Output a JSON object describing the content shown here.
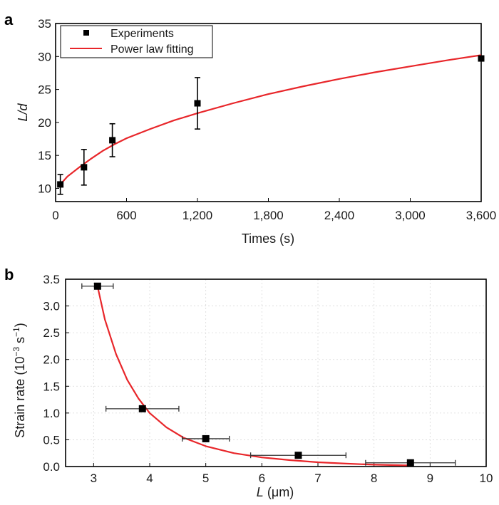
{
  "chart_data": [
    {
      "panel_label": "a",
      "type": "scatter",
      "xlabel": "Times (s)",
      "ylabel": "L/d",
      "xlim": [
        0,
        3600
      ],
      "ylim": [
        8,
        35
      ],
      "x_ticks": [
        0,
        600,
        1200,
        1800,
        2400,
        3000,
        3600
      ],
      "x_tick_labels": [
        "0",
        "600",
        "1,200",
        "1,800",
        "2,400",
        "3,000",
        "3,600"
      ],
      "y_ticks": [
        10,
        15,
        20,
        25,
        30,
        35
      ],
      "y_tick_labels": [
        "10",
        "15",
        "20",
        "25",
        "30",
        "35"
      ],
      "grid": false,
      "legend_position": "top-left",
      "series": [
        {
          "name": "Experiments",
          "kind": "points",
          "marker": "square",
          "color": "#000000",
          "x": [
            40,
            240,
            480,
            1200,
            3600
          ],
          "y": [
            10.6,
            13.2,
            17.3,
            22.9,
            29.7
          ],
          "y_err": [
            1.5,
            2.7,
            2.5,
            3.9,
            0
          ]
        },
        {
          "name": "Power law fitting",
          "kind": "line",
          "color": "#e8262a",
          "x": [
            40,
            100,
            200,
            300,
            400,
            500,
            600,
            800,
            1000,
            1200,
            1500,
            1800,
            2100,
            2400,
            2700,
            3000,
            3300,
            3600
          ],
          "y": [
            10.6,
            11.8,
            13.2,
            14.5,
            15.7,
            16.7,
            17.6,
            19.0,
            20.3,
            21.4,
            22.9,
            24.3,
            25.5,
            26.6,
            27.6,
            28.5,
            29.4,
            30.2
          ]
        }
      ]
    },
    {
      "panel_label": "b",
      "type": "scatter",
      "xlabel_italic": "L",
      "xlabel_unit": "(μm)",
      "ylabel_main": "Strain rate (10",
      "ylabel_exp1": "−3",
      "ylabel_mid": " s",
      "ylabel_exp2": "−1",
      "ylabel_end": ")",
      "xlim": [
        2.5,
        10
      ],
      "ylim": [
        0,
        3.5
      ],
      "x_ticks": [
        3,
        4,
        5,
        6,
        7,
        8,
        9,
        10
      ],
      "x_tick_labels": [
        "3",
        "4",
        "5",
        "6",
        "7",
        "8",
        "9",
        "10"
      ],
      "y_ticks": [
        0,
        0.5,
        1,
        1.5,
        2,
        2.5,
        3,
        3.5
      ],
      "y_tick_labels": [
        "0.0",
        "0.5",
        "1.0",
        "1.5",
        "2.0",
        "2.5",
        "3.0",
        "3.5"
      ],
      "grid": true,
      "series": [
        {
          "kind": "points",
          "marker": "square",
          "color": "#000000",
          "x": [
            3.07,
            3.87,
            5.0,
            6.65,
            8.65
          ],
          "y": [
            3.37,
            1.08,
            0.52,
            0.21,
            0.07
          ],
          "x_err": [
            0.28,
            0.65,
            0.42,
            0.85,
            0.8
          ]
        },
        {
          "kind": "line",
          "color": "#e8262a",
          "x": [
            3.07,
            3.2,
            3.4,
            3.6,
            3.8,
            4.0,
            4.3,
            4.6,
            5.0,
            5.5,
            6.0,
            6.5,
            7.0,
            7.5,
            8.0,
            8.65
          ],
          "y": [
            3.37,
            2.75,
            2.1,
            1.62,
            1.27,
            1.0,
            0.73,
            0.54,
            0.38,
            0.25,
            0.17,
            0.12,
            0.08,
            0.055,
            0.035,
            0.02
          ]
        }
      ]
    }
  ]
}
